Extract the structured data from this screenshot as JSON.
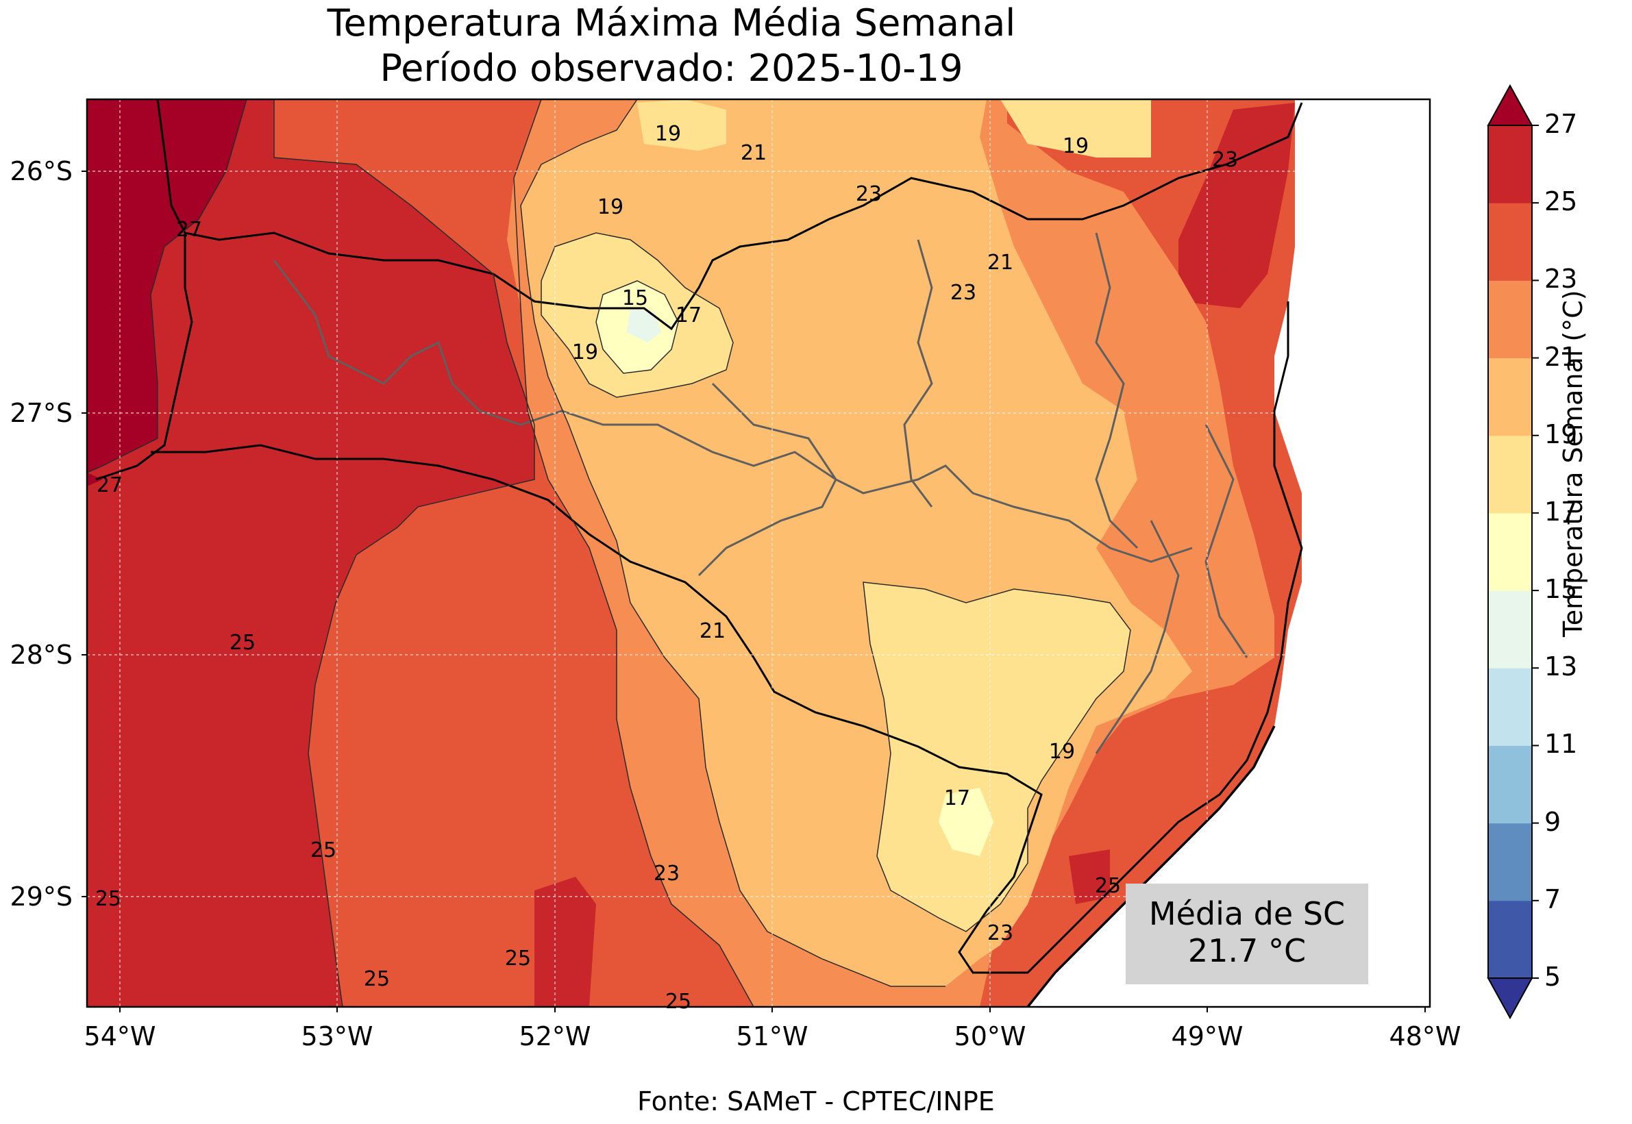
{
  "title": "Temperatura Máxima Média Semanal",
  "subtitle": "Período observado: 2025-10-19",
  "source": "Fonte: SAMeT - CPTEC/INPE",
  "average_box": {
    "label": "Média de SC",
    "value": "21.7 °C"
  },
  "colorbar": {
    "label": "Temperatura Semanal (°C)",
    "ticks": [
      "5",
      "7",
      "9",
      "11",
      "13",
      "15",
      "17",
      "19",
      "21",
      "23",
      "25",
      "27"
    ],
    "colors": [
      "#3f59a8",
      "#5f8dc0",
      "#8fc1dd",
      "#c2e3ee",
      "#e8f6ec",
      "#ffffbf",
      "#fee290",
      "#fdbe6f",
      "#f68e53",
      "#e55638",
      "#c9262b"
    ],
    "under_color": "#313695",
    "over_color": "#a50026"
  },
  "axes": {
    "lon_labels": [
      "54°W",
      "53°W",
      "52°W",
      "51°W",
      "50°W",
      "49°W",
      "48°W"
    ],
    "lat_labels": [
      "26°S",
      "27°S",
      "28°S",
      "29°S"
    ]
  },
  "contour_labels": [
    "19",
    "21",
    "19",
    "23",
    "19",
    "23",
    "21",
    "23",
    "27",
    "15",
    "17",
    "19",
    "27",
    "21",
    "25",
    "19",
    "17",
    "25",
    "23",
    "25",
    "25",
    "23",
    "25",
    "25",
    "25"
  ]
}
